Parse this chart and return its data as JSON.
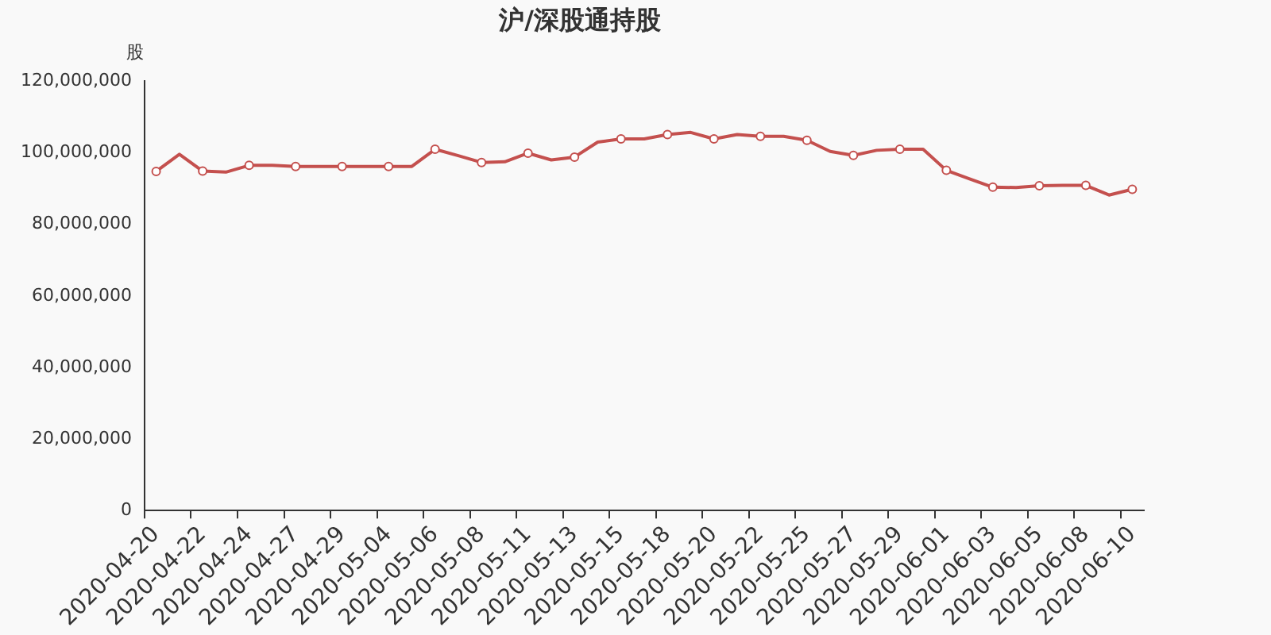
{
  "chart_data": {
    "type": "line",
    "title": "沪/深股通持股",
    "ylabel": "股",
    "categories": [
      "2020-04-20",
      null,
      "2020-04-22",
      null,
      "2020-04-24",
      null,
      "2020-04-27",
      null,
      "2020-04-29",
      null,
      "2020-05-04",
      null,
      "2020-05-06",
      null,
      "2020-05-08",
      null,
      "2020-05-11",
      null,
      "2020-05-13",
      null,
      "2020-05-15",
      null,
      "2020-05-18",
      null,
      "2020-05-20",
      null,
      "2020-05-22",
      null,
      "2020-05-25",
      null,
      "2020-05-27",
      null,
      "2020-05-29",
      null,
      "2020-06-01",
      null,
      "2020-06-03",
      null,
      "2020-06-05",
      null,
      "2020-06-08",
      null,
      "2020-06-10"
    ],
    "series": [
      {
        "color": "#c4504e",
        "values": [
          94800000,
          99600000,
          94900000,
          94600000,
          96500000,
          96500000,
          96200000,
          96200000,
          96200000,
          96200000,
          96200000,
          96200000,
          101000000,
          99200000,
          97300000,
          97500000,
          99900000,
          98000000,
          98800000,
          103000000,
          103900000,
          103900000,
          105100000,
          105700000,
          103900000,
          105100000,
          104600000,
          104600000,
          103500000,
          100400000,
          99300000,
          100700000,
          101000000,
          101000000,
          95100000,
          92700000,
          90400000,
          90300000,
          90800000,
          90900000,
          90900000,
          88200000,
          89800000
        ]
      }
    ],
    "ylim": [
      0,
      120000000
    ],
    "yticks": [
      0,
      {
        "value": 20000000,
        "label": "20,000,000"
      },
      {
        "value": 40000000,
        "label": "40,000,000"
      },
      {
        "value": 60000000,
        "label": "60,000,000"
      },
      {
        "value": 80000000,
        "label": "80,000,000"
      },
      {
        "value": 100000000,
        "label": "100,000,000"
      },
      {
        "value": 120000000,
        "label": "120,000,000"
      }
    ],
    "marker": "circle",
    "line_style": "solid",
    "legend": false
  }
}
